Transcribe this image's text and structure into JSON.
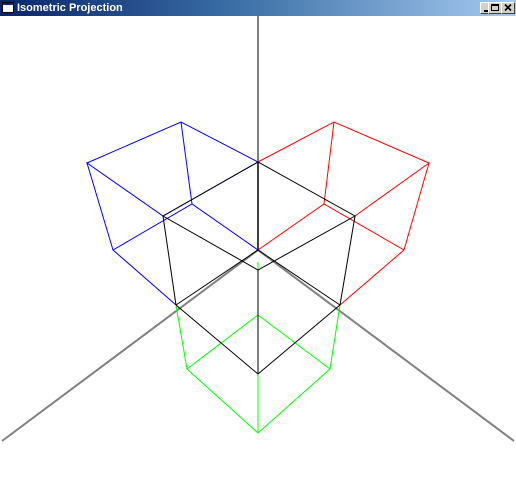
{
  "window": {
    "title": "Isometric Projection",
    "buttons": {
      "minimize": "minimize-icon",
      "maximize": "maximize-icon",
      "close": "close-icon"
    }
  },
  "colors": {
    "axis": "#808080",
    "cube_center": "#000000",
    "cube_left": "#0000ff",
    "cube_right": "#ff0000",
    "cube_bottom": "#00ff00"
  }
}
